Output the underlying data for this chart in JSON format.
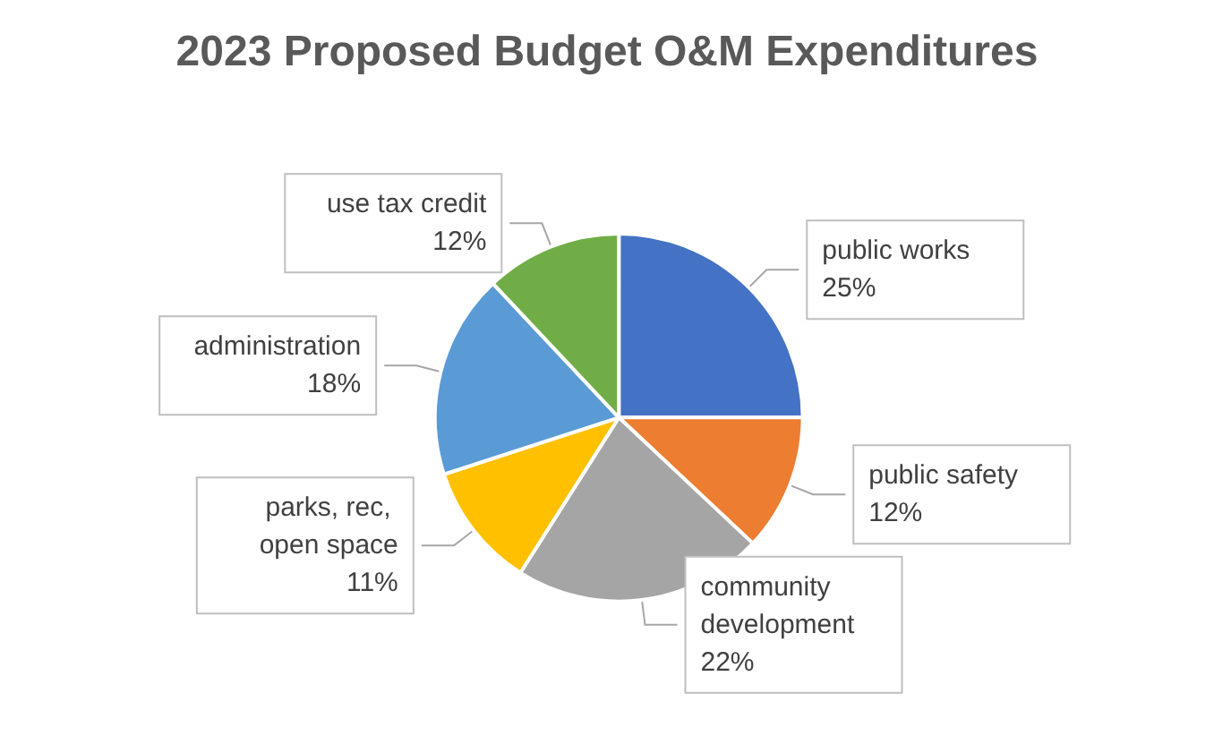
{
  "chart_data": {
    "type": "pie",
    "title": "2023 Proposed Budget O&M Expenditures",
    "categories": [
      "public works",
      "public safety",
      "community development",
      "parks, rec, open space",
      "administration",
      "use tax credit"
    ],
    "values": [
      25,
      12,
      22,
      11,
      18,
      12
    ],
    "value_labels": [
      "25%",
      "12%",
      "22%",
      "11%",
      "18%",
      "12%"
    ],
    "colors": [
      "#4472c4",
      "#ed7d31",
      "#a5a5a5",
      "#ffc000",
      "#5b9bd5",
      "#70ad47"
    ],
    "legend": false
  }
}
